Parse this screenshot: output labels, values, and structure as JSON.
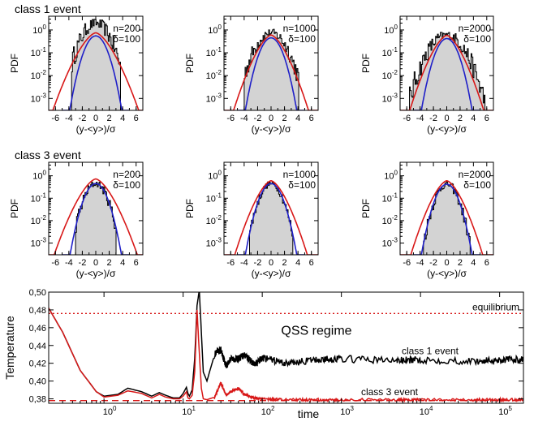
{
  "chart_data": [
    {
      "type": "histogram",
      "group_label": "class 1 event",
      "annotation_n": "n=200",
      "annotation_delta": "δ=100",
      "xlabel": "(y-<y>)/σ",
      "ylabel": "PDF",
      "yscale": "log",
      "xlim": [
        -7,
        7
      ],
      "ylim": [
        0.0003,
        4
      ],
      "xticks": [
        "-6",
        "-4",
        "-2",
        "0",
        "2",
        "4",
        "6"
      ],
      "yticks": [
        "10^-3",
        "10^-2",
        "10^-1",
        "10^0"
      ],
      "hist_halfwidth": 3.6,
      "hist_peak": 2.0,
      "hist_spread": 1.25,
      "hist_noise": 0.42,
      "blue_gaussian_peak": 0.55,
      "red_gaussian_peak": 0.75,
      "red_spread": 1.8,
      "series": [
        {
          "name": "histogram",
          "color": "#000000"
        },
        {
          "name": "blue curve",
          "color": "#1f1fc8"
        },
        {
          "name": "red curve",
          "color": "#d81818"
        }
      ]
    },
    {
      "type": "histogram",
      "group_label": "",
      "annotation_n": "n=1000",
      "annotation_delta": "δ=100",
      "xlabel": "(y-<y>)/σ",
      "ylabel": "PDF",
      "yscale": "log",
      "xlim": [
        -7,
        7
      ],
      "ylim": [
        0.0003,
        4
      ],
      "xticks": [
        "-6",
        "-4",
        "-2",
        "0",
        "2",
        "4",
        "6"
      ],
      "yticks": [
        "10^-3",
        "10^-2",
        "10^-1",
        "10^0"
      ],
      "hist_halfwidth": 4.0,
      "hist_peak": 0.75,
      "hist_spread": 1.35,
      "hist_noise": 0.35,
      "blue_gaussian_peak": 0.45,
      "red_gaussian_peak": 0.6,
      "red_spread": 1.6,
      "series": [
        {
          "name": "histogram",
          "color": "#000000"
        },
        {
          "name": "blue curve",
          "color": "#1f1fc8"
        },
        {
          "name": "red curve",
          "color": "#d81818"
        }
      ]
    },
    {
      "type": "histogram",
      "group_label": "",
      "annotation_n": "n=2000",
      "annotation_delta": "δ=100",
      "xlabel": "(y-<y>)/σ",
      "ylabel": "PDF",
      "yscale": "log",
      "xlim": [
        -7,
        7
      ],
      "ylim": [
        0.0003,
        4
      ],
      "xticks": [
        "-6",
        "-4",
        "-2",
        "0",
        "2",
        "4",
        "6"
      ],
      "yticks": [
        "10^-3",
        "10^-2",
        "10^-1",
        "10^0"
      ],
      "hist_halfwidth": 5.6,
      "hist_peak": 0.6,
      "hist_spread": 1.55,
      "hist_noise": 0.35,
      "blue_gaussian_peak": 0.42,
      "red_gaussian_peak": 0.58,
      "red_spread": 1.6,
      "series": [
        {
          "name": "histogram",
          "color": "#000000"
        },
        {
          "name": "blue curve",
          "color": "#1f1fc8"
        },
        {
          "name": "red curve",
          "color": "#d81818"
        }
      ]
    },
    {
      "type": "histogram",
      "group_label": "class 3 event",
      "annotation_n": "n=200",
      "annotation_delta": "δ=100",
      "xlabel": "(y-<y>)/σ",
      "ylabel": "PDF",
      "yscale": "log",
      "xlim": [
        -7,
        7
      ],
      "ylim": [
        0.0003,
        4
      ],
      "xticks": [
        "-6",
        "-4",
        "-2",
        "0",
        "2",
        "4",
        "6"
      ],
      "yticks": [
        "10^-3",
        "10^-2",
        "10^-1",
        "10^0"
      ],
      "hist_halfwidth": 3.0,
      "hist_peak": 0.45,
      "hist_spread": 1.0,
      "hist_noise": 0.3,
      "blue_gaussian_peak": 0.45,
      "red_gaussian_peak": 0.72,
      "red_spread": 1.75,
      "series": [
        {
          "name": "histogram",
          "color": "#000000"
        },
        {
          "name": "blue curve",
          "color": "#1f1fc8"
        },
        {
          "name": "red curve",
          "color": "#d81818"
        }
      ]
    },
    {
      "type": "histogram",
      "group_label": "",
      "annotation_n": "n=1000",
      "annotation_delta": "δ=100",
      "xlabel": "(y-<y>)/σ",
      "ylabel": "PDF",
      "yscale": "log",
      "xlim": [
        -7,
        7
      ],
      "ylim": [
        0.0003,
        4
      ],
      "xticks": [
        "-6",
        "-4",
        "-2",
        "0",
        "2",
        "4",
        "6"
      ],
      "yticks": [
        "10^-3",
        "10^-2",
        "10^-1",
        "10^0"
      ],
      "hist_halfwidth": 3.2,
      "hist_peak": 0.45,
      "hist_spread": 1.0,
      "hist_noise": 0.25,
      "blue_gaussian_peak": 0.45,
      "red_gaussian_peak": 0.6,
      "red_spread": 1.55,
      "series": [
        {
          "name": "histogram",
          "color": "#000000"
        },
        {
          "name": "blue curve",
          "color": "#1f1fc8"
        },
        {
          "name": "red curve",
          "color": "#d81818"
        }
      ]
    },
    {
      "type": "histogram",
      "group_label": "",
      "annotation_n": "n=2000",
      "annotation_delta": "δ=100",
      "xlabel": "(y-<y>)/σ",
      "ylabel": "PDF",
      "yscale": "log",
      "xlim": [
        -7,
        7
      ],
      "ylim": [
        0.0003,
        4
      ],
      "xticks": [
        "-6",
        "-4",
        "-2",
        "0",
        "2",
        "4",
        "6"
      ],
      "yticks": [
        "10^-3",
        "10^-2",
        "10^-1",
        "10^0"
      ],
      "hist_halfwidth": 3.5,
      "hist_peak": 0.42,
      "hist_spread": 1.0,
      "hist_noise": 0.3,
      "blue_gaussian_peak": 0.42,
      "red_gaussian_peak": 0.6,
      "red_spread": 1.55,
      "series": [
        {
          "name": "histogram",
          "color": "#000000"
        },
        {
          "name": "blue curve",
          "color": "#1f1fc8"
        },
        {
          "name": "red curve",
          "color": "#d81818"
        }
      ]
    },
    {
      "type": "line",
      "xlabel": "time",
      "ylabel": "Temperature",
      "xscale": "log",
      "xlim": [
        0.2,
        200000
      ],
      "ylim": [
        0.375,
        0.5
      ],
      "xticks": [
        "10^0",
        "10^1",
        "10^2",
        "10^3",
        "10^4",
        "10^5"
      ],
      "yticks": [
        "0,38",
        "0,40",
        "0,42",
        "0,44",
        "0,46",
        "0,48",
        "0,50"
      ],
      "reference_lines": [
        {
          "label": "equilibrium",
          "y": 0.476,
          "color": "#d81818",
          "style": "dotted"
        },
        {
          "label": "",
          "y": 0.378,
          "color": "#d81818",
          "style": "dashed"
        }
      ],
      "annotations": [
        "QSS regime",
        "class 1 event",
        "class 3 event"
      ],
      "series": [
        {
          "name": "class 1 event",
          "color": "#000000",
          "x": [
            0.2,
            0.3,
            0.5,
            0.8,
            1.0,
            1.5,
            2.0,
            3.0,
            4.0,
            5.0,
            6.0,
            7.5,
            9,
            10,
            11,
            11.5,
            12,
            13,
            14,
            15,
            16,
            17,
            18,
            20,
            25,
            30,
            35,
            40,
            50,
            60,
            80,
            100,
            200,
            500,
            1000,
            5000,
            10000,
            50000,
            100000,
            200000
          ],
          "y": [
            0.482,
            0.455,
            0.412,
            0.388,
            0.383,
            0.385,
            0.392,
            0.388,
            0.383,
            0.387,
            0.384,
            0.381,
            0.381,
            0.386,
            0.393,
            0.386,
            0.383,
            0.39,
            0.425,
            0.485,
            0.502,
            0.455,
            0.41,
            0.4,
            0.43,
            0.435,
            0.417,
            0.425,
            0.425,
            0.43,
            0.418,
            0.426,
            0.42,
            0.424,
            0.425,
            0.423,
            0.424,
            0.422,
            0.424,
            0.424
          ]
        },
        {
          "name": "class 3 event",
          "color": "#d81818",
          "x": [
            0.2,
            0.3,
            0.5,
            0.8,
            1.0,
            1.5,
            2.0,
            3.0,
            4.0,
            5.0,
            6.0,
            7.5,
            9,
            10,
            11,
            11.5,
            12,
            13,
            14,
            15,
            16,
            17,
            18,
            20,
            25,
            30,
            35,
            40,
            50,
            60,
            80,
            100,
            200,
            500,
            1000,
            5000,
            10000,
            50000,
            100000,
            200000
          ],
          "y": [
            0.482,
            0.455,
            0.412,
            0.388,
            0.382,
            0.384,
            0.389,
            0.386,
            0.381,
            0.385,
            0.382,
            0.38,
            0.38,
            0.383,
            0.388,
            0.381,
            0.38,
            0.384,
            0.41,
            0.48,
            0.432,
            0.392,
            0.38,
            0.379,
            0.382,
            0.398,
            0.384,
            0.388,
            0.392,
            0.385,
            0.381,
            0.38,
            0.379,
            0.379,
            0.379,
            0.379,
            0.379,
            0.379,
            0.379,
            0.379
          ]
        }
      ]
    }
  ]
}
